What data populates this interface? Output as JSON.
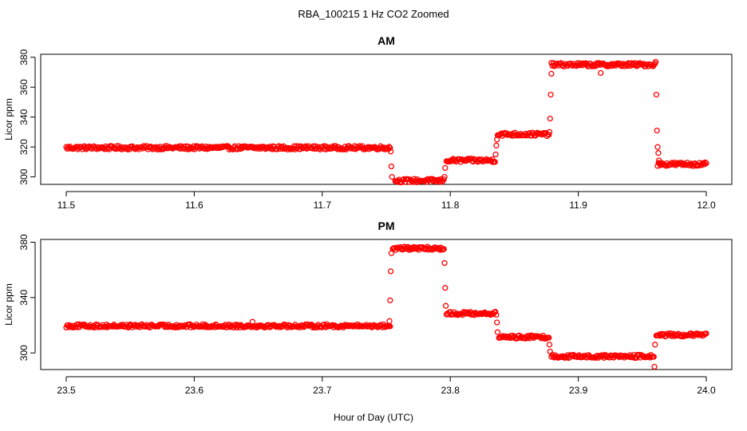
{
  "figure_title": "RBA_100215  1 Hz CO2 Zoomed",
  "shared_xlabel": "Hour of Day (UTC)",
  "colors": {
    "points": "#ff0000",
    "axes": "#000000",
    "background": "#ffffff"
  },
  "chart_data": [
    {
      "type": "scatter",
      "title": "AM",
      "xlabel": "",
      "ylabel": "Licor ppm",
      "xlim": [
        11.5,
        12.0
      ],
      "ylim": [
        295,
        382
      ],
      "x_ticks": [
        "11.5",
        "11.6",
        "11.7",
        "11.8",
        "11.9",
        "12.0"
      ],
      "y_ticks": [
        "300",
        "320",
        "340",
        "360",
        "380"
      ],
      "grid": false,
      "marker": "open-circle",
      "segments": [
        {
          "x_start": 11.5,
          "x_end": 11.753,
          "y": 319.5
        },
        {
          "x_start": 11.757,
          "x_end": 11.795,
          "y": 297.5
        },
        {
          "x_start": 11.797,
          "x_end": 11.835,
          "y": 311
        },
        {
          "x_start": 11.837,
          "x_end": 11.877,
          "y": 328.5
        },
        {
          "x_start": 11.879,
          "x_end": 11.96,
          "y": 375
        },
        {
          "x_start": 11.962,
          "x_end": 12.0,
          "y": 308.5
        }
      ],
      "transition_points": [
        {
          "x": 11.7535,
          "y": 317
        },
        {
          "x": 11.754,
          "y": 307
        },
        {
          "x": 11.7545,
          "y": 300
        },
        {
          "x": 11.7955,
          "y": 300
        },
        {
          "x": 11.796,
          "y": 306
        },
        {
          "x": 11.8355,
          "y": 315
        },
        {
          "x": 11.836,
          "y": 321
        },
        {
          "x": 11.8365,
          "y": 325
        },
        {
          "x": 11.8775,
          "y": 330
        },
        {
          "x": 11.878,
          "y": 339
        },
        {
          "x": 11.8785,
          "y": 355
        },
        {
          "x": 11.879,
          "y": 369
        },
        {
          "x": 11.9175,
          "y": 369.5
        },
        {
          "x": 11.9605,
          "y": 377
        },
        {
          "x": 11.961,
          "y": 355
        },
        {
          "x": 11.9615,
          "y": 331
        },
        {
          "x": 11.962,
          "y": 320
        },
        {
          "x": 11.9625,
          "y": 316
        },
        {
          "x": 11.963,
          "y": 311
        }
      ]
    },
    {
      "type": "scatter",
      "title": "PM",
      "xlabel": "",
      "ylabel": "Licor ppm",
      "xlim": [
        23.5,
        24.0
      ],
      "ylim": [
        288,
        382
      ],
      "x_ticks": [
        "23.5",
        "23.6",
        "23.7",
        "23.8",
        "23.9",
        "24.0"
      ],
      "y_ticks": [
        "300",
        "340",
        "380"
      ],
      "grid": false,
      "marker": "open-circle",
      "segments": [
        {
          "x_start": 23.5,
          "x_end": 23.753,
          "y": 319.5
        },
        {
          "x_start": 23.755,
          "x_end": 23.795,
          "y": 375.5
        },
        {
          "x_start": 23.797,
          "x_end": 23.836,
          "y": 328.5
        },
        {
          "x_start": 23.838,
          "x_end": 23.877,
          "y": 311.5
        },
        {
          "x_start": 23.879,
          "x_end": 23.959,
          "y": 297.5
        },
        {
          "x_start": 23.961,
          "x_end": 24.0,
          "y": 313
        }
      ],
      "transition_points": [
        {
          "x": 23.7525,
          "y": 323
        },
        {
          "x": 23.753,
          "y": 338
        },
        {
          "x": 23.7535,
          "y": 359
        },
        {
          "x": 23.754,
          "y": 372
        },
        {
          "x": 23.6455,
          "y": 322.5
        },
        {
          "x": 23.7955,
          "y": 365
        },
        {
          "x": 23.796,
          "y": 347
        },
        {
          "x": 23.7965,
          "y": 334
        },
        {
          "x": 23.8365,
          "y": 322
        },
        {
          "x": 23.837,
          "y": 315
        },
        {
          "x": 23.8775,
          "y": 306
        },
        {
          "x": 23.878,
          "y": 301
        },
        {
          "x": 23.9595,
          "y": 290
        },
        {
          "x": 23.96,
          "y": 306
        }
      ]
    }
  ]
}
